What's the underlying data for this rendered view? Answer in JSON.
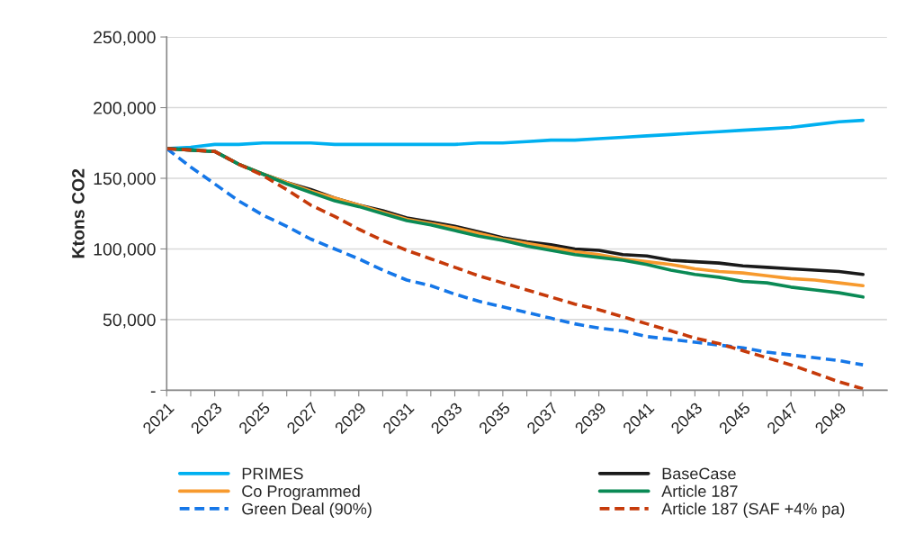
{
  "chart_data": {
    "type": "line",
    "ylabel": "Ktons CO2",
    "categories": [
      "2021",
      null,
      "2023",
      null,
      "2025",
      null,
      "2027",
      null,
      "2029",
      null,
      "2031",
      null,
      "2033",
      null,
      "2035",
      null,
      "2037",
      null,
      "2039",
      null,
      "2041",
      null,
      "2043",
      null,
      "2045",
      null,
      "2047",
      null,
      "2049",
      null
    ],
    "ylim": [
      0,
      250000
    ],
    "yticks": [
      {
        "value": 0,
        "label": "-"
      },
      {
        "value": 50000,
        "label": "50,000"
      },
      {
        "value": 100000,
        "label": "100,000"
      },
      {
        "value": 150000,
        "label": "150,000"
      },
      {
        "value": 200000,
        "label": "200,000"
      },
      {
        "value": 250000,
        "label": "250,000"
      }
    ],
    "grid": "y",
    "legend": "bottom",
    "marker": "none",
    "series": [
      {
        "name": "PRIMES",
        "color": "#00b0f0",
        "line_style": "solid",
        "values": [
          171000,
          172000,
          174000,
          174000,
          175000,
          175000,
          175000,
          174000,
          174000,
          174000,
          174000,
          174000,
          174000,
          175000,
          175000,
          176000,
          177000,
          177000,
          178000,
          179000,
          180000,
          181000,
          182000,
          183000,
          184000,
          185000,
          186000,
          188000,
          190000,
          191000
        ]
      },
      {
        "name": "BaseCase",
        "color": "#1a1a1a",
        "line_style": "solid",
        "values": [
          171000,
          170000,
          169000,
          160000,
          153000,
          147000,
          142000,
          136000,
          131000,
          127000,
          122000,
          119000,
          116000,
          112000,
          108000,
          105000,
          103000,
          100000,
          99000,
          96000,
          95000,
          92000,
          91000,
          90000,
          88000,
          87000,
          86000,
          85000,
          84000,
          82000
        ]
      },
      {
        "name": "Co Programmed",
        "color": "#f79a2e",
        "line_style": "solid",
        "values": [
          null,
          null,
          null,
          160000,
          153000,
          147000,
          141000,
          136000,
          131000,
          126000,
          121000,
          118000,
          115000,
          111000,
          107000,
          104000,
          101000,
          98000,
          96000,
          93000,
          91000,
          89000,
          86000,
          84000,
          83000,
          81000,
          79000,
          78000,
          76000,
          74000
        ]
      },
      {
        "name": "Article 187",
        "color": "#0a8a55",
        "line_style": "solid",
        "values": [
          171000,
          170000,
          169000,
          160000,
          153000,
          146000,
          140000,
          134000,
          130000,
          125000,
          120000,
          117000,
          113000,
          109000,
          106000,
          102000,
          99000,
          96000,
          94000,
          92000,
          89000,
          85000,
          82000,
          80000,
          77000,
          76000,
          73000,
          71000,
          69000,
          66000
        ]
      },
      {
        "name": "Green Deal (90%)",
        "color": "#1577e8",
        "line_style": "dashed",
        "values": [
          171000,
          158000,
          146000,
          134000,
          124000,
          116000,
          107000,
          100000,
          93000,
          85000,
          78000,
          74000,
          68000,
          63000,
          59000,
          55000,
          51000,
          47000,
          44000,
          42000,
          38000,
          36000,
          34000,
          32000,
          30000,
          27000,
          25000,
          23000,
          21000,
          18000
        ]
      },
      {
        "name": "Article 187 (SAF +4% pa)",
        "color": "#c63a0a",
        "line_style": "dashed",
        "values": [
          171000,
          170000,
          169000,
          160000,
          152000,
          142000,
          131000,
          123000,
          114000,
          106000,
          99000,
          93000,
          87000,
          81000,
          76000,
          71000,
          66000,
          61000,
          57000,
          52000,
          47000,
          42000,
          37000,
          33000,
          28000,
          23000,
          18000,
          12000,
          6000,
          1000
        ]
      }
    ]
  }
}
